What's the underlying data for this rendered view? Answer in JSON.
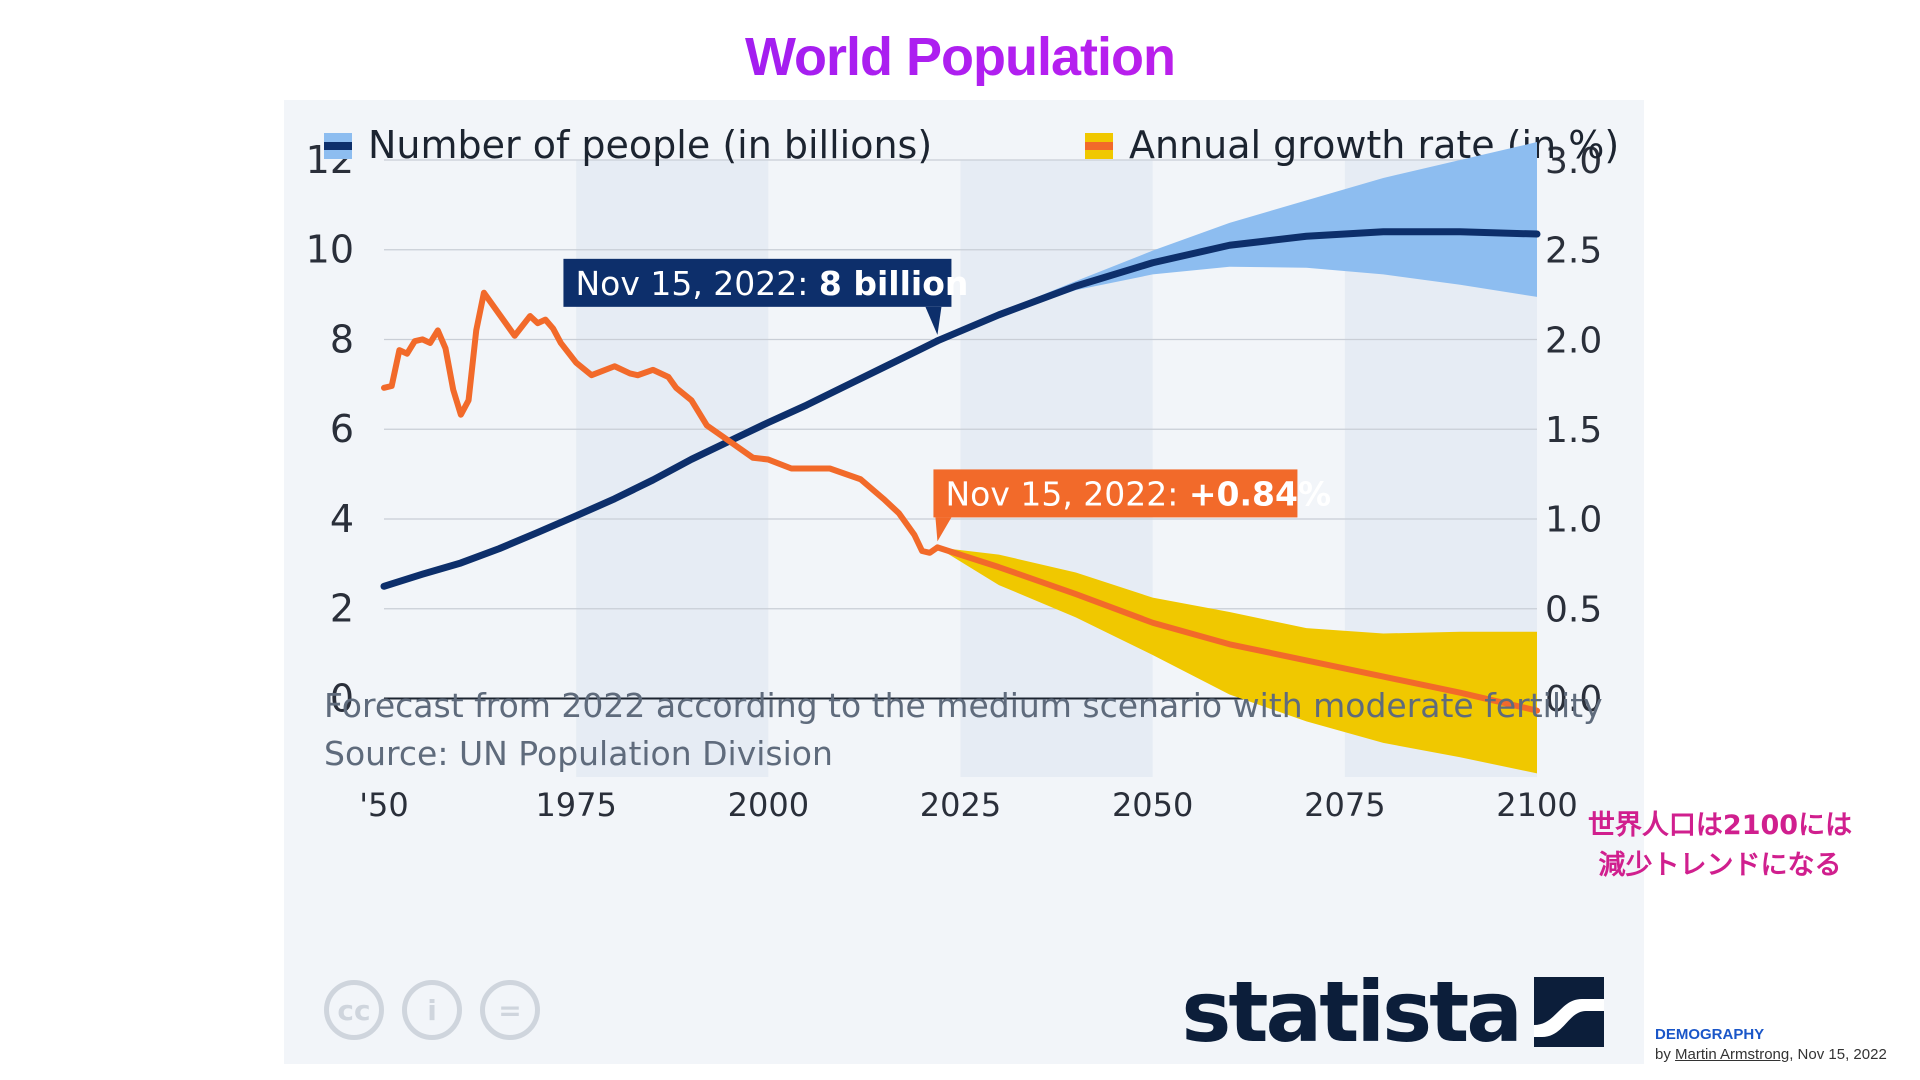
{
  "slide": {
    "title": "World Population",
    "note_jp": [
      "世界人口は2100には",
      "減少トレンドになる"
    ],
    "category": "DEMOGRAPHY",
    "byline_prefix": "by",
    "byline_author": "Martin Armstrong",
    "byline_date": ", Nov 15, 2022"
  },
  "colors": {
    "population_line": "#0d2f6b",
    "population_band": "#8dbdf0",
    "growth_line": "#f26a2a",
    "growth_band": "#f0c800",
    "shade": "#e6ecf4",
    "grid": "#c9ced6",
    "title_gradient": [
      "#7a1df0",
      "#e21cc8"
    ]
  },
  "footer": {
    "forecast_note": "Forecast from 2022 according to the medium scenario with moderate fertility",
    "source": "Source: UN Population Division",
    "logo_text": "statista",
    "icons": [
      "cc-icon",
      "by-icon",
      "nd-icon"
    ],
    "icon_glyphs": [
      "cc",
      "i",
      "="
    ]
  },
  "chart_data": {
    "type": "line",
    "legend": {
      "left": "Number of people (in billions)",
      "right": "Annual growth rate (in %)",
      "placement": "top"
    },
    "x_ticks": [
      "'50",
      "1975",
      "2000",
      "2025",
      "2050",
      "2075",
      "2100"
    ],
    "x_tick_values": [
      1950,
      1975,
      2000,
      2025,
      2050,
      2075,
      2100
    ],
    "xlim": [
      1950,
      2100
    ],
    "y_left": {
      "ticks": [
        "0",
        "2",
        "4",
        "6",
        "8",
        "10",
        "12"
      ],
      "lim": [
        -1.75,
        12
      ]
    },
    "y_right": {
      "ticks": [
        "0.0",
        "0.5",
        "1.0",
        "1.5",
        "2.0",
        "2.5",
        "3.0"
      ],
      "lim": [
        -0.44,
        3.0
      ]
    },
    "shaded_periods": [
      [
        1975,
        2000
      ],
      [
        2025,
        2050
      ],
      [
        2075,
        2100
      ]
    ],
    "grid": true,
    "series": [
      {
        "name": "Number of people (in billions)",
        "axis": "left",
        "x": [
          1950,
          1955,
          1960,
          1965,
          1970,
          1975,
          1980,
          1985,
          1990,
          1995,
          2000,
          2005,
          2010,
          2015,
          2020,
          2022
        ],
        "values": [
          2.5,
          2.77,
          3.02,
          3.34,
          3.7,
          4.07,
          4.45,
          4.87,
          5.33,
          5.74,
          6.15,
          6.54,
          6.96,
          7.38,
          7.8,
          7.97
        ]
      },
      {
        "name": "Number of people (in billions)",
        "axis": "left",
        "forecast": true,
        "x": [
          2022,
          2030,
          2040,
          2050,
          2060,
          2070,
          2080,
          2090,
          2100
        ],
        "values": [
          7.97,
          8.55,
          9.19,
          9.71,
          10.1,
          10.3,
          10.4,
          10.4,
          10.35
        ],
        "lower": [
          7.97,
          8.5,
          9.1,
          9.45,
          9.62,
          9.6,
          9.45,
          9.22,
          8.95
        ],
        "upper": [
          7.97,
          8.6,
          9.3,
          9.98,
          10.6,
          11.1,
          11.6,
          12.0,
          12.4
        ]
      },
      {
        "name": "Annual growth rate (in %)",
        "axis": "right",
        "x": [
          1950,
          1951,
          1952,
          1953,
          1954,
          1955,
          1956,
          1957,
          1958,
          1959,
          1960,
          1961,
          1962,
          1963,
          1965,
          1967,
          1969,
          1970,
          1971,
          1972,
          1973,
          1975,
          1977,
          1980,
          1982,
          1983,
          1985,
          1987,
          1988,
          1990,
          1992,
          1995,
          1998,
          2000,
          2003,
          2005,
          2008,
          2010,
          2012,
          2015,
          2017,
          2019,
          2020,
          2021,
          2022
        ],
        "values": [
          1.73,
          1.74,
          1.94,
          1.92,
          1.99,
          2.0,
          1.98,
          2.05,
          1.95,
          1.72,
          1.58,
          1.66,
          2.05,
          2.26,
          2.14,
          2.02,
          2.13,
          2.09,
          2.11,
          2.06,
          1.98,
          1.87,
          1.8,
          1.85,
          1.81,
          1.8,
          1.83,
          1.79,
          1.73,
          1.66,
          1.52,
          1.43,
          1.34,
          1.33,
          1.28,
          1.28,
          1.28,
          1.25,
          1.22,
          1.11,
          1.03,
          0.91,
          0.82,
          0.81,
          0.84
        ]
      },
      {
        "name": "Annual growth rate (in %)",
        "axis": "right",
        "forecast": true,
        "x": [
          2022,
          2030,
          2040,
          2050,
          2060,
          2070,
          2080,
          2090,
          2100
        ],
        "values": [
          0.84,
          0.73,
          0.58,
          0.42,
          0.3,
          0.21,
          0.12,
          0.03,
          -0.07
        ],
        "lower": [
          0.84,
          0.63,
          0.45,
          0.24,
          0.02,
          -0.13,
          -0.25,
          -0.33,
          -0.42
        ],
        "upper": [
          0.84,
          0.8,
          0.7,
          0.56,
          0.48,
          0.39,
          0.36,
          0.37,
          0.37
        ]
      }
    ],
    "annotations": [
      {
        "prefix": "Nov 15, 2022: ",
        "value": "8 billion",
        "x": 2022,
        "y": 7.97,
        "axis": "left"
      },
      {
        "prefix": "Nov 15, 2022: ",
        "value": "+0.84%",
        "x": 2022,
        "y": 0.84,
        "axis": "right"
      }
    ]
  }
}
